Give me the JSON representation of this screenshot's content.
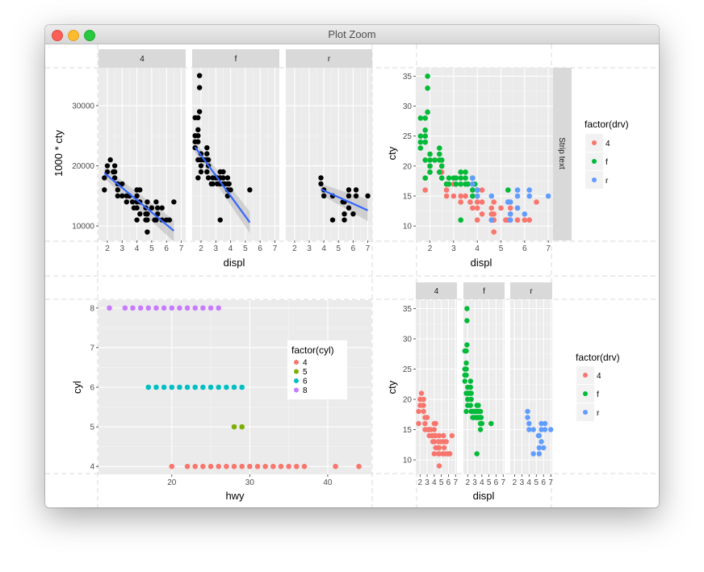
{
  "window": {
    "title": "Plot Zoom"
  },
  "colors": {
    "drv_4": "#F8766D",
    "drv_f": "#00BA38",
    "drv_r": "#619CFF",
    "cyl_4": "#F8766D",
    "cyl_5": "#7CAE00",
    "cyl_6": "#00BFC4",
    "cyl_8": "#C77CFF",
    "smooth": "#3366FF",
    "panel_bg": "#EBEBEB",
    "strip_bg": "#D9D9D9"
  },
  "chart_data": [
    {
      "id": "top-left",
      "type": "scatter",
      "facets": [
        "4",
        "f",
        "r"
      ],
      "xlabel": "displ",
      "ylabel": "1000 * cty",
      "xticks": [
        2,
        3,
        4,
        5,
        6,
        7
      ],
      "yticks": [
        10000,
        20000,
        30000
      ],
      "xlim": [
        1.4,
        7.3
      ],
      "ylim": [
        7600,
        36300
      ],
      "smooth": true,
      "series": [
        {
          "name": "4",
          "points": [
            [
              1.8,
              18
            ],
            [
              1.8,
              16
            ],
            [
              2.0,
              20
            ],
            [
              2.0,
              19
            ],
            [
              2.2,
              21
            ],
            [
              2.4,
              19
            ],
            [
              2.5,
              20
            ],
            [
              2.5,
              18
            ],
            [
              2.5,
              19
            ],
            [
              2.7,
              17
            ],
            [
              2.7,
              16
            ],
            [
              2.7,
              15
            ],
            [
              3.0,
              17
            ],
            [
              3.0,
              15
            ],
            [
              3.3,
              15
            ],
            [
              3.3,
              14
            ],
            [
              3.5,
              15
            ],
            [
              3.7,
              14
            ],
            [
              3.8,
              13
            ],
            [
              4.0,
              16
            ],
            [
              4.0,
              15
            ],
            [
              4.0,
              14
            ],
            [
              4.0,
              13
            ],
            [
              4.0,
              11
            ],
            [
              4.2,
              16
            ],
            [
              4.2,
              14
            ],
            [
              4.2,
              12
            ],
            [
              4.6,
              13
            ],
            [
              4.6,
              12
            ],
            [
              4.6,
              11
            ],
            [
              4.7,
              14
            ],
            [
              4.7,
              12
            ],
            [
              4.7,
              9
            ],
            [
              4.7,
              11
            ],
            [
              5.0,
              13
            ],
            [
              5.2,
              11
            ],
            [
              5.3,
              14
            ],
            [
              5.3,
              11
            ],
            [
              5.4,
              13
            ],
            [
              5.4,
              12
            ],
            [
              5.7,
              13
            ],
            [
              5.7,
              11
            ],
            [
              6.0,
              11
            ],
            [
              6.2,
              11
            ],
            [
              6.5,
              14
            ]
          ],
          "smooth": [
            [
              1.8,
              18.8
            ],
            [
              6.5,
              9.2
            ]
          ]
        },
        {
          "name": "f",
          "points": [
            [
              1.6,
              28
            ],
            [
              1.6,
              25
            ],
            [
              1.6,
              24
            ],
            [
              1.6,
              23
            ],
            [
              1.8,
              28
            ],
            [
              1.8,
              26
            ],
            [
              1.8,
              25
            ],
            [
              1.8,
              24
            ],
            [
              1.8,
              21
            ],
            [
              1.8,
              18
            ],
            [
              1.9,
              35
            ],
            [
              1.9,
              33
            ],
            [
              1.9,
              29
            ],
            [
              2.0,
              22
            ],
            [
              2.0,
              21
            ],
            [
              2.0,
              20
            ],
            [
              2.0,
              19
            ],
            [
              2.2,
              21
            ],
            [
              2.4,
              23
            ],
            [
              2.4,
              22
            ],
            [
              2.4,
              21
            ],
            [
              2.4,
              19
            ],
            [
              2.5,
              21
            ],
            [
              2.5,
              20
            ],
            [
              2.5,
              18
            ],
            [
              2.7,
              17
            ],
            [
              2.8,
              18
            ],
            [
              2.8,
              17
            ],
            [
              3.0,
              18
            ],
            [
              3.1,
              18
            ],
            [
              3.1,
              17
            ],
            [
              3.3,
              19
            ],
            [
              3.3,
              18
            ],
            [
              3.3,
              17
            ],
            [
              3.3,
              11
            ],
            [
              3.5,
              19
            ],
            [
              3.5,
              18
            ],
            [
              3.5,
              17
            ],
            [
              3.6,
              17
            ],
            [
              3.8,
              18
            ],
            [
              3.8,
              17
            ],
            [
              3.8,
              16
            ],
            [
              3.8,
              15
            ],
            [
              3.9,
              17
            ],
            [
              4.0,
              16
            ],
            [
              5.3,
              16
            ]
          ],
          "smooth": [
            [
              1.6,
              23.1
            ],
            [
              5.3,
              10.6
            ]
          ]
        },
        {
          "name": "r",
          "points": [
            [
              3.8,
              18
            ],
            [
              3.8,
              17
            ],
            [
              4.0,
              16
            ],
            [
              4.0,
              15
            ],
            [
              4.6,
              15
            ],
            [
              4.6,
              11
            ],
            [
              5.3,
              14
            ],
            [
              5.4,
              14
            ],
            [
              5.4,
              12
            ],
            [
              5.4,
              11
            ],
            [
              5.7,
              16
            ],
            [
              5.7,
              15
            ],
            [
              5.7,
              13
            ],
            [
              6.0,
              12
            ],
            [
              6.2,
              16
            ],
            [
              6.2,
              15
            ],
            [
              7.0,
              15
            ]
          ],
          "smooth": [
            [
              3.8,
              16.1
            ],
            [
              7.0,
              12.6
            ]
          ]
        }
      ]
    },
    {
      "id": "top-right",
      "type": "scatter",
      "xlabel": "displ",
      "ylabel": "cty",
      "xticks": [
        2,
        3,
        4,
        5,
        6,
        7
      ],
      "yticks": [
        10,
        15,
        20,
        25,
        30,
        35
      ],
      "xlim": [
        1.4,
        7.2
      ],
      "ylim": [
        7.6,
        36.4
      ],
      "strip_text": "Strip text",
      "legend": {
        "title": "factor(drv)",
        "keys": [
          "4",
          "f",
          "r"
        ]
      }
    },
    {
      "id": "bottom-left",
      "type": "scatter",
      "xlabel": "hwy",
      "ylabel": "cyl",
      "xticks": [
        20,
        30,
        40
      ],
      "yticks": [
        4,
        5,
        6,
        7,
        8
      ],
      "xlim": [
        10.6,
        45.6
      ],
      "ylim": [
        3.8,
        8.2
      ],
      "legend": {
        "title": "factor(cyl)",
        "keys": [
          "4",
          "5",
          "6",
          "8"
        ],
        "position": "inside-right"
      },
      "series": [
        {
          "name": "4",
          "y": 4,
          "x": [
            20,
            22,
            23,
            24,
            25,
            26,
            27,
            28,
            29,
            30,
            31,
            32,
            33,
            34,
            35,
            36,
            37,
            41,
            44
          ]
        },
        {
          "name": "5",
          "y": 5,
          "x": [
            28,
            29
          ]
        },
        {
          "name": "6",
          "y": 6,
          "x": [
            17,
            18,
            19,
            20,
            21,
            22,
            23,
            24,
            25,
            26,
            27,
            28,
            29
          ]
        },
        {
          "name": "8",
          "y": 8,
          "x": [
            12,
            14,
            15,
            16,
            17,
            18,
            19,
            20,
            21,
            22,
            23,
            24,
            25,
            26
          ]
        }
      ]
    },
    {
      "id": "bottom-right",
      "type": "scatter",
      "facets": [
        "4",
        "f",
        "r"
      ],
      "xlabel": "displ",
      "ylabel": "cty",
      "xticks": [
        2,
        3,
        4,
        5,
        6,
        7
      ],
      "yticks": [
        10,
        15,
        20,
        25,
        30,
        35
      ],
      "xlim": [
        1.4,
        7.2
      ],
      "ylim": [
        7.6,
        36.4
      ],
      "legend": {
        "title": "factor(drv)",
        "keys": [
          "4",
          "f",
          "r"
        ]
      }
    }
  ]
}
